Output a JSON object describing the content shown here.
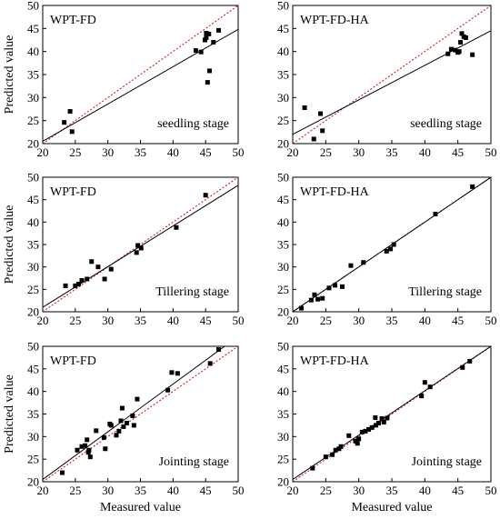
{
  "figure": {
    "xlabel": "Measured value",
    "ylabel": "Predicted value"
  },
  "chart_data": [
    {
      "type": "scatter",
      "label": "WPT-FD",
      "stage": "seedling stage",
      "xlim": [
        20,
        50
      ],
      "ylim": [
        20,
        50
      ],
      "xticks": [
        20,
        25,
        30,
        35,
        40,
        45,
        50
      ],
      "yticks": [
        20,
        25,
        30,
        35,
        40,
        45,
        50
      ],
      "xlabel": "",
      "ylabel": "Predicted value",
      "points": [
        [
          23.3,
          24.6
        ],
        [
          24.2,
          27.0
        ],
        [
          24.5,
          22.6
        ],
        [
          43.5,
          40.2
        ],
        [
          44.3,
          39.9
        ],
        [
          44.9,
          42.5
        ],
        [
          45.1,
          43.0
        ],
        [
          45.1,
          44.0
        ],
        [
          45.5,
          43.8
        ],
        [
          45.3,
          33.3
        ],
        [
          45.6,
          35.8
        ],
        [
          46.2,
          42.0
        ],
        [
          47.0,
          44.6
        ]
      ],
      "fit_line": [
        [
          20,
          20.5
        ],
        [
          50,
          44.8
        ]
      ],
      "reference_line": [
        [
          20,
          20
        ],
        [
          50,
          50
        ]
      ]
    },
    {
      "type": "scatter",
      "label": "WPT-FD-HA",
      "stage": "seedling stage",
      "xlim": [
        20,
        50
      ],
      "ylim": [
        20,
        50
      ],
      "xticks": [
        20,
        25,
        30,
        35,
        40,
        45,
        50
      ],
      "yticks": [
        20,
        25,
        30,
        35,
        40,
        45,
        50
      ],
      "xlabel": "",
      "ylabel": "",
      "points": [
        [
          21.8,
          27.8
        ],
        [
          23.2,
          21.0
        ],
        [
          24.2,
          26.5
        ],
        [
          24.5,
          22.8
        ],
        [
          43.5,
          39.5
        ],
        [
          44.0,
          40.5
        ],
        [
          44.6,
          40.3
        ],
        [
          45.0,
          39.8
        ],
        [
          45.2,
          40.0
        ],
        [
          45.4,
          42.0
        ],
        [
          45.6,
          43.9
        ],
        [
          45.9,
          43.2
        ],
        [
          46.2,
          43.0
        ],
        [
          47.2,
          39.3
        ]
      ],
      "fit_line": [
        [
          20,
          22.0
        ],
        [
          50,
          44.5
        ]
      ],
      "reference_line": [
        [
          20,
          20
        ],
        [
          50,
          50
        ]
      ]
    },
    {
      "type": "scatter",
      "label": "WPT-FD",
      "stage": "Tillering stage",
      "xlim": [
        20,
        50
      ],
      "ylim": [
        20,
        50
      ],
      "xticks": [
        20,
        25,
        30,
        35,
        40,
        45,
        50
      ],
      "yticks": [
        20,
        25,
        30,
        35,
        40,
        45,
        50
      ],
      "xlabel": "",
      "ylabel": "Predicted value",
      "points": [
        [
          23.5,
          25.8
        ],
        [
          25.0,
          25.8
        ],
        [
          25.5,
          26.2
        ],
        [
          26.0,
          27.0
        ],
        [
          26.8,
          27.3
        ],
        [
          27.5,
          31.2
        ],
        [
          28.5,
          30.0
        ],
        [
          29.5,
          27.3
        ],
        [
          30.5,
          29.5
        ],
        [
          34.4,
          33.2
        ],
        [
          34.6,
          34.8
        ],
        [
          35.1,
          34.2
        ],
        [
          40.5,
          38.8
        ],
        [
          45.0,
          46.0
        ]
      ],
      "fit_line": [
        [
          20,
          21.0
        ],
        [
          50,
          48.2
        ]
      ],
      "reference_line": [
        [
          20,
          20
        ],
        [
          50,
          50
        ]
      ]
    },
    {
      "type": "scatter",
      "label": "WPT-FD-HA",
      "stage": "Tillering stage",
      "xlim": [
        20,
        50
      ],
      "ylim": [
        20,
        50
      ],
      "xticks": [
        20,
        25,
        30,
        35,
        40,
        45,
        50
      ],
      "yticks": [
        20,
        25,
        30,
        35,
        40,
        45,
        50
      ],
      "xlabel": "",
      "ylabel": "",
      "points": [
        [
          21.3,
          20.8
        ],
        [
          22.8,
          22.6
        ],
        [
          23.3,
          23.8
        ],
        [
          23.8,
          22.8
        ],
        [
          24.5,
          23.0
        ],
        [
          25.5,
          25.3
        ],
        [
          26.4,
          25.9
        ],
        [
          27.5,
          25.6
        ],
        [
          28.8,
          30.3
        ],
        [
          30.7,
          31.0
        ],
        [
          34.2,
          33.5
        ],
        [
          34.8,
          34.0
        ],
        [
          35.3,
          35.0
        ],
        [
          41.6,
          41.8
        ],
        [
          47.2,
          47.9
        ]
      ],
      "fit_line": [
        [
          20,
          20
        ],
        [
          50,
          50
        ]
      ],
      "reference_line": [
        [
          20,
          20
        ],
        [
          50,
          50
        ]
      ]
    },
    {
      "type": "scatter",
      "label": "WPT-FD",
      "stage": "Jointing stage",
      "xlim": [
        20,
        50
      ],
      "ylim": [
        20,
        50
      ],
      "xticks": [
        20,
        25,
        30,
        35,
        40,
        45,
        50
      ],
      "yticks": [
        20,
        25,
        30,
        35,
        40,
        45,
        50
      ],
      "xlabel": "Measured value",
      "ylabel": "Predicted value",
      "points": [
        [
          23.0,
          22.0
        ],
        [
          25.3,
          27.0
        ],
        [
          26.0,
          27.8
        ],
        [
          26.5,
          28.0
        ],
        [
          26.8,
          29.3
        ],
        [
          27.0,
          26.5
        ],
        [
          27.1,
          27.0
        ],
        [
          27.3,
          25.5
        ],
        [
          28.2,
          31.3
        ],
        [
          29.4,
          29.8
        ],
        [
          29.6,
          27.3
        ],
        [
          30.3,
          32.8
        ],
        [
          30.5,
          32.5
        ],
        [
          31.3,
          30.3
        ],
        [
          31.7,
          31.2
        ],
        [
          32.0,
          33.5
        ],
        [
          32.2,
          36.3
        ],
        [
          32.4,
          32.2
        ],
        [
          32.9,
          33.0
        ],
        [
          33.8,
          34.6
        ],
        [
          34.0,
          32.5
        ],
        [
          34.5,
          38.3
        ],
        [
          39.2,
          40.3
        ],
        [
          39.8,
          44.2
        ],
        [
          40.7,
          44.0
        ],
        [
          45.7,
          46.2
        ],
        [
          47.0,
          49.3
        ]
      ],
      "fit_line": [
        [
          20,
          20.5
        ],
        [
          50,
          52.2
        ]
      ],
      "reference_line": [
        [
          20,
          20
        ],
        [
          50,
          50
        ]
      ]
    },
    {
      "type": "scatter",
      "label": "WPT-FD-HA",
      "stage": "Jointing stage",
      "xlim": [
        20,
        50
      ],
      "ylim": [
        20,
        50
      ],
      "xticks": [
        20,
        25,
        30,
        35,
        40,
        45,
        50
      ],
      "yticks": [
        20,
        25,
        30,
        35,
        40,
        45,
        50
      ],
      "xlabel": "Measured value",
      "ylabel": "",
      "points": [
        [
          23.0,
          23.0
        ],
        [
          25.0,
          25.5
        ],
        [
          26.0,
          26.0
        ],
        [
          26.5,
          27.0
        ],
        [
          27.0,
          27.3
        ],
        [
          27.3,
          27.8
        ],
        [
          28.5,
          30.2
        ],
        [
          29.5,
          29.0
        ],
        [
          29.8,
          28.5
        ],
        [
          30.0,
          29.5
        ],
        [
          30.5,
          31.0
        ],
        [
          31.0,
          31.2
        ],
        [
          31.5,
          31.6
        ],
        [
          32.0,
          32.0
        ],
        [
          32.5,
          34.2
        ],
        [
          32.6,
          32.5
        ],
        [
          33.0,
          33.0
        ],
        [
          33.5,
          34.0
        ],
        [
          33.8,
          33.2
        ],
        [
          34.3,
          34.1
        ],
        [
          39.5,
          39.0
        ],
        [
          40.0,
          42.0
        ],
        [
          40.8,
          41.0
        ],
        [
          45.7,
          45.3
        ],
        [
          46.8,
          46.7
        ]
      ],
      "fit_line": [
        [
          20,
          20.5
        ],
        [
          50,
          50
        ]
      ],
      "reference_line": [
        [
          20,
          20
        ],
        [
          50,
          50
        ]
      ]
    }
  ]
}
